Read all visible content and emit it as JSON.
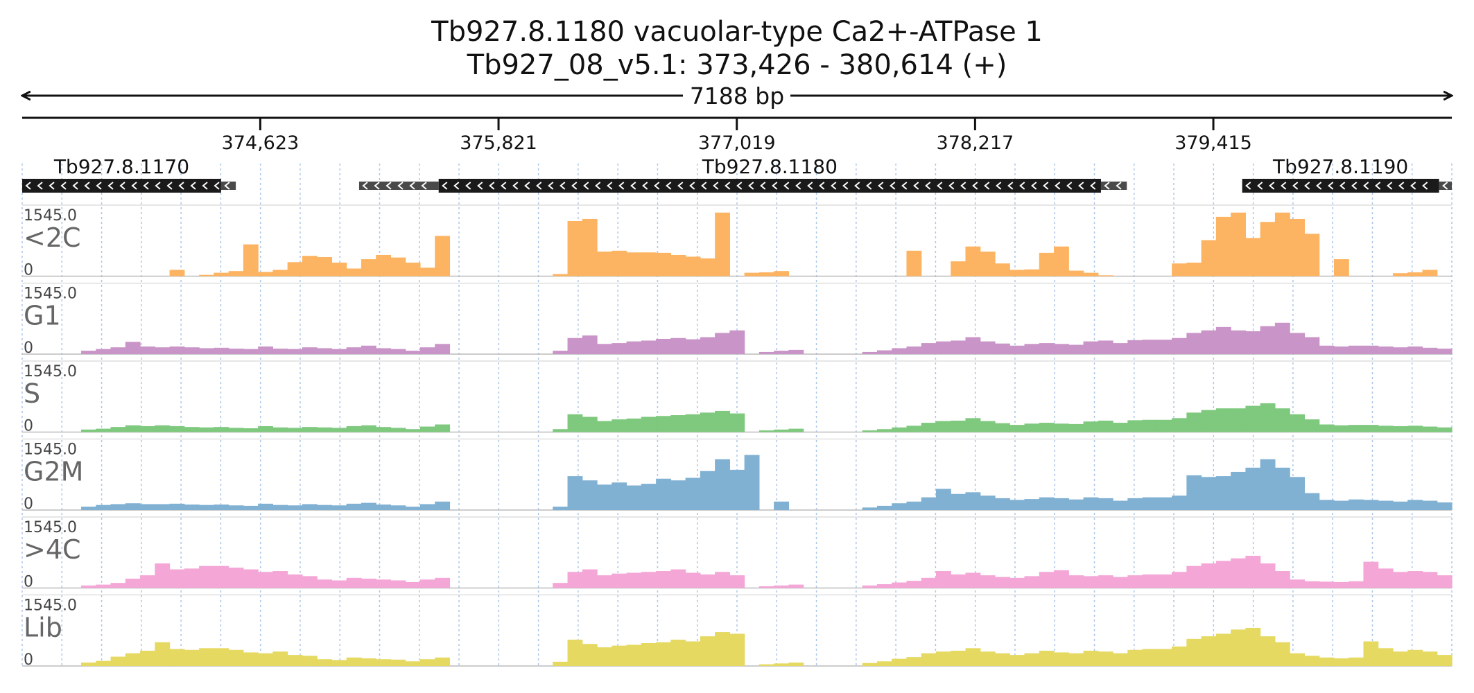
{
  "title_line1": "Tb927.8.1180  vacuolar-type Ca2+-ATPase 1",
  "title_line2": "Tb927_08_v5.1: 373,426 - 380,614 (+)",
  "span_label": "7188 bp",
  "chart_data": {
    "type": "area",
    "region": {
      "chromosome": "Tb927_08_v5.1",
      "start": 373426,
      "end": 380614,
      "strand": "+"
    },
    "xticks": [
      {
        "pos": 374623,
        "label": "374,623"
      },
      {
        "pos": 375821,
        "label": "375,821"
      },
      {
        "pos": 377019,
        "label": "377,019"
      },
      {
        "pos": 378217,
        "label": "378,217"
      },
      {
        "pos": 379415,
        "label": "379,415"
      }
    ],
    "genes": [
      {
        "name": "Tb927.8.1170",
        "strand": "-",
        "cds": [
          373426,
          374426
        ],
        "utr": [
          374426,
          374500
        ]
      },
      {
        "name": "Tb927.8.1180",
        "strand": "-",
        "cds": [
          375520,
          378850
        ],
        "utr5": [
          378850,
          378980
        ],
        "utr3": [
          375120,
          375520
        ]
      },
      {
        "name": "Tb927.8.1190",
        "strand": "-",
        "cds": [
          379560,
          380550
        ],
        "utr": [
          380550,
          380614
        ]
      }
    ],
    "ylim": [
      0,
      1545.0
    ],
    "ymax_label": "1545.0",
    "ymin_label": "0",
    "bins_count": 96,
    "series": [
      {
        "name": "<2C",
        "color": "#fdb462",
        "values": [
          0,
          0,
          0,
          0,
          0,
          0,
          0,
          0,
          0,
          0,
          150,
          0,
          30,
          80,
          120,
          750,
          100,
          150,
          330,
          480,
          450,
          320,
          180,
          400,
          500,
          440,
          320,
          200,
          950,
          0,
          0,
          0,
          0,
          0,
          0,
          0,
          50,
          1300,
          1350,
          580,
          600,
          560,
          560,
          550,
          500,
          460,
          420,
          1500,
          0,
          80,
          90,
          120,
          0,
          0,
          0,
          0,
          0,
          0,
          0,
          0,
          600,
          0,
          0,
          350,
          700,
          580,
          300,
          150,
          160,
          550,
          700,
          130,
          80,
          20,
          0,
          0,
          0,
          0,
          300,
          320,
          850,
          1400,
          1500,
          900,
          1280,
          1500,
          1350,
          1000,
          0,
          400,
          0,
          0,
          0,
          70,
          90,
          150,
          0
        ]
      },
      {
        "name": "G1",
        "color": "#c994c7",
        "values": [
          0,
          0,
          0,
          0,
          80,
          120,
          160,
          290,
          180,
          160,
          180,
          160,
          140,
          150,
          130,
          120,
          180,
          130,
          120,
          160,
          140,
          120,
          160,
          200,
          140,
          120,
          80,
          160,
          240,
          0,
          0,
          0,
          0,
          0,
          0,
          0,
          80,
          380,
          440,
          240,
          260,
          300,
          320,
          360,
          380,
          350,
          400,
          500,
          560,
          0,
          50,
          80,
          100,
          0,
          0,
          0,
          0,
          50,
          90,
          140,
          180,
          260,
          300,
          320,
          400,
          300,
          250,
          200,
          240,
          260,
          240,
          220,
          300,
          320,
          260,
          330,
          340,
          340,
          380,
          500,
          560,
          640,
          560,
          540,
          660,
          740,
          500,
          400,
          200,
          180,
          200,
          200,
          180,
          160,
          180,
          150,
          130
        ]
      },
      {
        "name": "S",
        "color": "#7fc97f",
        "values": [
          0,
          0,
          0,
          0,
          60,
          80,
          120,
          160,
          140,
          160,
          140,
          120,
          110,
          120,
          100,
          90,
          140,
          110,
          100,
          120,
          110,
          100,
          140,
          160,
          120,
          100,
          70,
          130,
          180,
          0,
          0,
          0,
          0,
          0,
          0,
          0,
          70,
          420,
          360,
          260,
          300,
          320,
          360,
          380,
          400,
          420,
          460,
          500,
          440,
          0,
          40,
          60,
          80,
          0,
          0,
          0,
          0,
          40,
          70,
          110,
          150,
          220,
          260,
          270,
          330,
          260,
          210,
          170,
          200,
          220,
          200,
          190,
          250,
          270,
          220,
          280,
          290,
          290,
          330,
          460,
          520,
          560,
          560,
          620,
          680,
          560,
          420,
          300,
          180,
          160,
          170,
          170,
          150,
          140,
          150,
          130,
          110
        ]
      },
      {
        "name": "G2M",
        "color": "#80b1d3",
        "values": [
          0,
          0,
          0,
          0,
          80,
          120,
          140,
          160,
          140,
          140,
          150,
          130,
          120,
          130,
          110,
          100,
          150,
          120,
          110,
          140,
          120,
          110,
          150,
          170,
          130,
          110,
          80,
          140,
          200,
          0,
          0,
          0,
          0,
          0,
          0,
          0,
          80,
          800,
          700,
          600,
          650,
          580,
          620,
          740,
          700,
          760,
          920,
          1200,
          950,
          1300,
          0,
          200,
          0,
          0,
          0,
          0,
          0,
          60,
          100,
          160,
          200,
          300,
          500,
          380,
          420,
          340,
          280,
          240,
          260,
          300,
          280,
          250,
          300,
          280,
          220,
          280,
          300,
          300,
          340,
          820,
          780,
          800,
          900,
          1000,
          1200,
          1000,
          780,
          400,
          240,
          220,
          250,
          240,
          220,
          200,
          240,
          220,
          180
        ]
      },
      {
        "name": ">4C",
        "color": "#f4a6d7",
        "values": [
          0,
          0,
          0,
          0,
          60,
          80,
          120,
          220,
          300,
          580,
          440,
          460,
          520,
          520,
          480,
          440,
          380,
          400,
          320,
          280,
          200,
          180,
          240,
          220,
          200,
          180,
          140,
          200,
          240,
          0,
          0,
          0,
          0,
          0,
          0,
          0,
          120,
          380,
          440,
          300,
          340,
          360,
          380,
          400,
          440,
          360,
          320,
          380,
          300,
          0,
          40,
          60,
          80,
          0,
          0,
          0,
          0,
          60,
          90,
          130,
          170,
          240,
          400,
          320,
          360,
          300,
          260,
          240,
          280,
          380,
          420,
          300,
          280,
          300,
          260,
          300,
          320,
          320,
          380,
          520,
          580,
          640,
          700,
          760,
          580,
          400,
          200,
          160,
          150,
          140,
          160,
          620,
          460,
          380,
          400,
          380,
          300
        ]
      },
      {
        "name": "Lib",
        "color": "#e5d962",
        "values": [
          0,
          0,
          0,
          0,
          80,
          120,
          220,
          300,
          360,
          560,
          400,
          380,
          420,
          420,
          380,
          320,
          300,
          340,
          260,
          240,
          160,
          140,
          200,
          180,
          160,
          150,
          110,
          160,
          200,
          0,
          0,
          0,
          0,
          0,
          0,
          0,
          100,
          620,
          520,
          440,
          480,
          500,
          540,
          560,
          620,
          580,
          700,
          800,
          760,
          0,
          40,
          60,
          80,
          0,
          0,
          0,
          0,
          70,
          110,
          170,
          210,
          300,
          340,
          360,
          420,
          340,
          300,
          260,
          300,
          360,
          320,
          300,
          360,
          340,
          300,
          380,
          400,
          400,
          460,
          640,
          700,
          760,
          860,
          900,
          700,
          560,
          300,
          240,
          200,
          180,
          200,
          580,
          420,
          340,
          380,
          340,
          260
        ]
      }
    ]
  }
}
